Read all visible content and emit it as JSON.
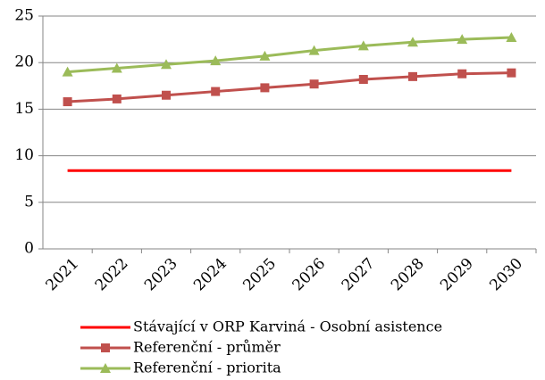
{
  "chart_data": {
    "type": "line",
    "categories": [
      "2021",
      "2022",
      "2023",
      "2024",
      "2025",
      "2026",
      "2027",
      "2028",
      "2029",
      "2030"
    ],
    "series": [
      {
        "name": "Stávající v ORP Karviná - Osobní asistence",
        "color": "#ff0000",
        "marker": "none",
        "values": [
          8.4,
          8.4,
          8.4,
          8.4,
          8.4,
          8.4,
          8.4,
          8.4,
          8.4,
          8.4
        ]
      },
      {
        "name": "Referenční - průměr",
        "color": "#c0504d",
        "marker": "square",
        "values": [
          15.8,
          16.1,
          16.5,
          16.9,
          17.3,
          17.7,
          18.2,
          18.5,
          18.8,
          18.9
        ]
      },
      {
        "name": "Referenční - priorita",
        "color": "#9bbb59",
        "marker": "triangle",
        "values": [
          19.0,
          19.4,
          19.8,
          20.2,
          20.7,
          21.3,
          21.8,
          22.2,
          22.5,
          22.7
        ]
      }
    ],
    "ylim": [
      0,
      25
    ],
    "yticks": [
      0,
      5,
      10,
      15,
      20,
      25
    ],
    "grid": true
  }
}
